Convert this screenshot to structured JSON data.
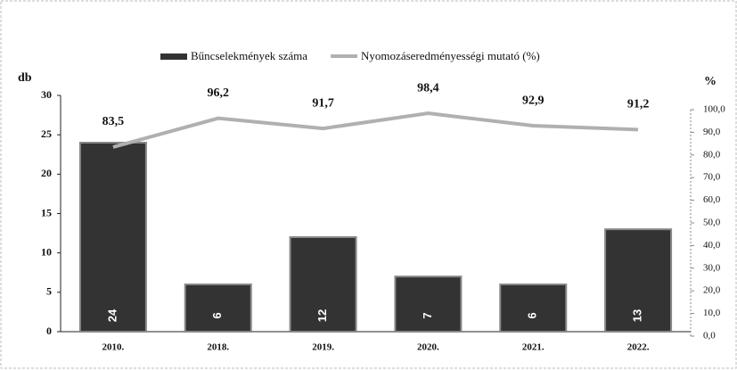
{
  "chart_data": {
    "type": "bar",
    "categories": [
      "2010.",
      "2018.",
      "2019.",
      "2020.",
      "2021.",
      "2022."
    ],
    "ylabel": "db",
    "y2label": "%",
    "ylim": [
      0,
      30
    ],
    "yticks": [
      0,
      5,
      10,
      15,
      20,
      25,
      30
    ],
    "y2lim": [
      0,
      100
    ],
    "y2ticks": [
      {
        "value": 0,
        "label": "0,0"
      },
      {
        "value": 10,
        "label": "10,0"
      },
      {
        "value": 20,
        "label": "20,0"
      },
      {
        "value": 30,
        "label": "30,0"
      },
      {
        "value": 40,
        "label": "40,0"
      },
      {
        "value": 50,
        "label": "50,0"
      },
      {
        "value": 60,
        "label": "60,0"
      },
      {
        "value": 70,
        "label": "70,0"
      },
      {
        "value": 80,
        "label": "80,0"
      },
      {
        "value": 90,
        "label": "90,0"
      },
      {
        "value": 100,
        "label": "100,0"
      }
    ],
    "legend": "top",
    "series": [
      {
        "name": "Bűncselekmények száma",
        "type": "bar",
        "color": "#333333",
        "values": [
          24,
          6,
          12,
          7,
          6,
          13
        ]
      },
      {
        "name": "Nyomozáseredményességi mutató (%)",
        "type": "line",
        "axis": "y2",
        "color": "#b0b0b0",
        "values": [
          83.5,
          96.2,
          91.7,
          98.4,
          92.9,
          91.2
        ],
        "value_labels": [
          "83,5",
          "96,2",
          "91,7",
          "98,4",
          "92,9",
          "91,2"
        ]
      }
    ]
  }
}
